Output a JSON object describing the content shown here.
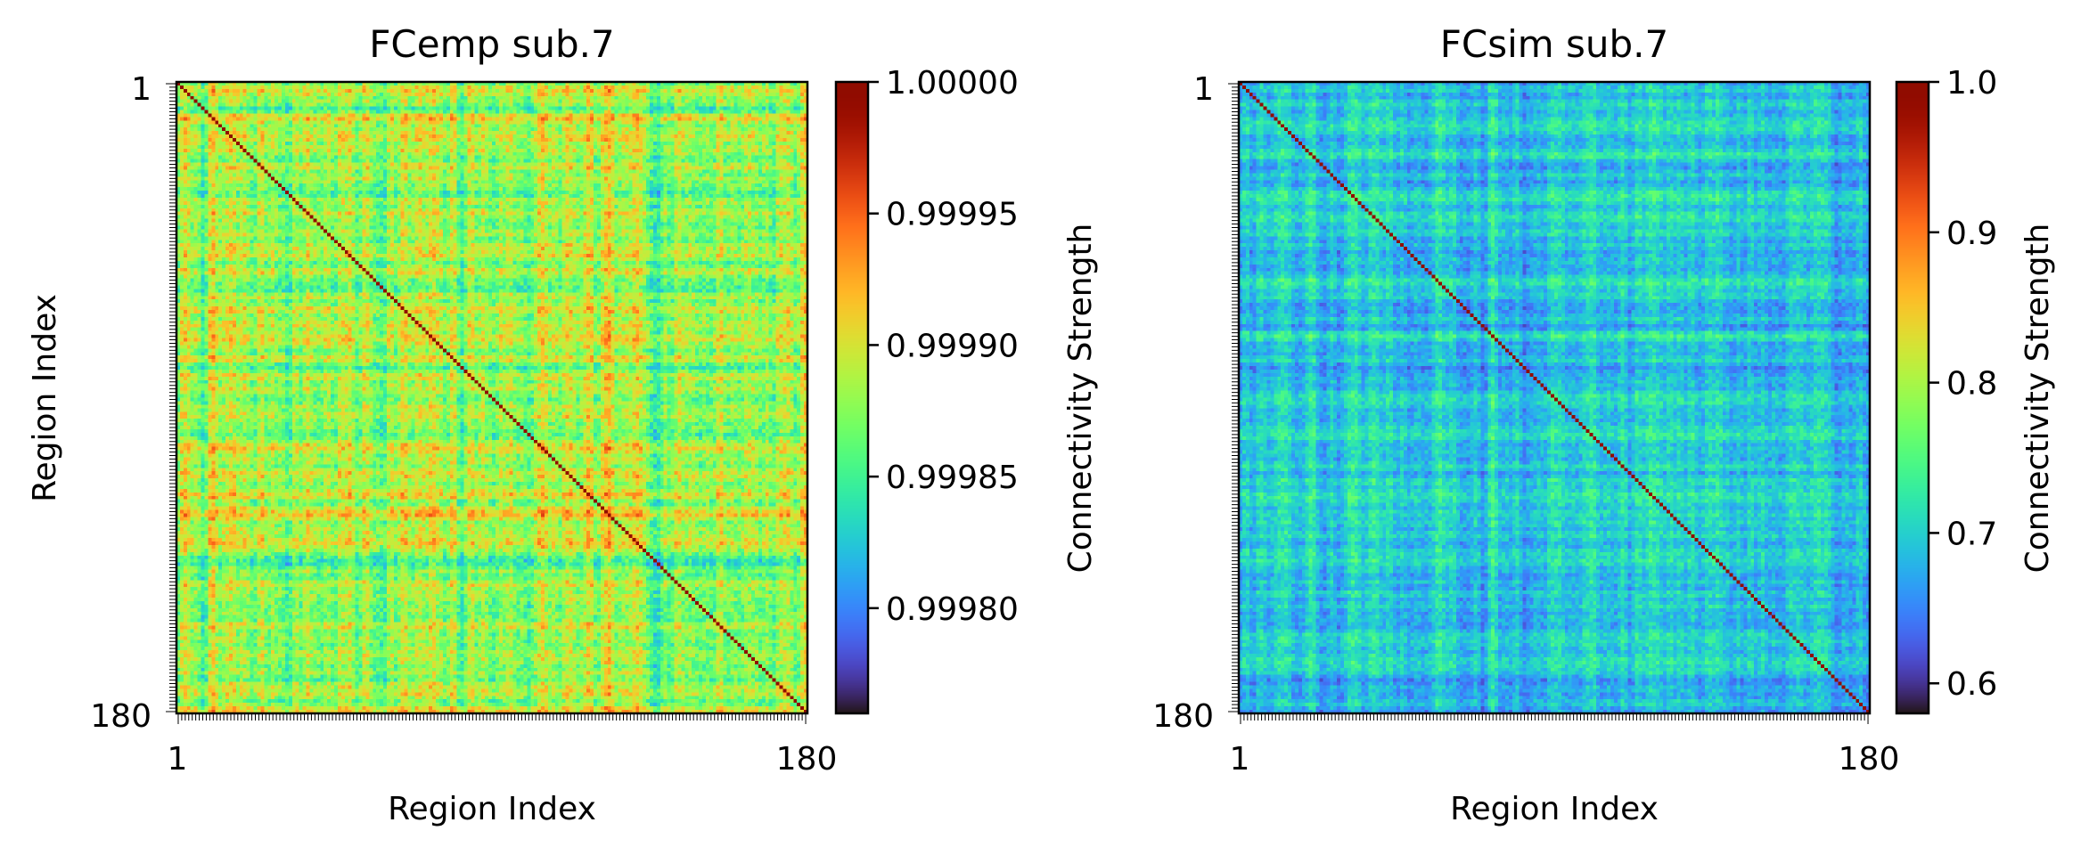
{
  "chart_data": [
    {
      "type": "heatmap",
      "title": "FCemp sub.7",
      "xlabel": "Region Index",
      "ylabel": "Region Index",
      "x_tick_labels": [
        "1",
        "180"
      ],
      "y_tick_labels": [
        "1",
        "180"
      ],
      "n_regions": 180,
      "colormap": "turbo",
      "diagonal_value": 1.0,
      "typical_offdiag_range": [
        0.9998,
        0.99998
      ],
      "colorbar": {
        "label": "Connectivity Strength",
        "range": [
          0.99976,
          1.0
        ],
        "ticks": [
          1.0,
          0.99995,
          0.9999,
          0.99985,
          0.9998
        ],
        "tick_labels": [
          "1.00000",
          "0.99995",
          "0.99990",
          "0.99985",
          "0.99980"
        ]
      }
    },
    {
      "type": "heatmap",
      "title": "FCsim sub.7",
      "xlabel": "Region Index",
      "ylabel": "",
      "x_tick_labels": [
        "1",
        "180"
      ],
      "y_tick_labels": [
        "1",
        "180"
      ],
      "n_regions": 180,
      "colormap": "turbo",
      "diagonal_value": 1.0,
      "typical_offdiag_range": [
        0.6,
        0.8
      ],
      "colorbar": {
        "label": "Connectivity Strength",
        "range": [
          0.58,
          1.0
        ],
        "ticks": [
          1.0,
          0.9,
          0.8,
          0.7,
          0.6
        ],
        "tick_labels": [
          "1.0",
          "0.9",
          "0.8",
          "0.7",
          "0.6"
        ]
      }
    }
  ]
}
